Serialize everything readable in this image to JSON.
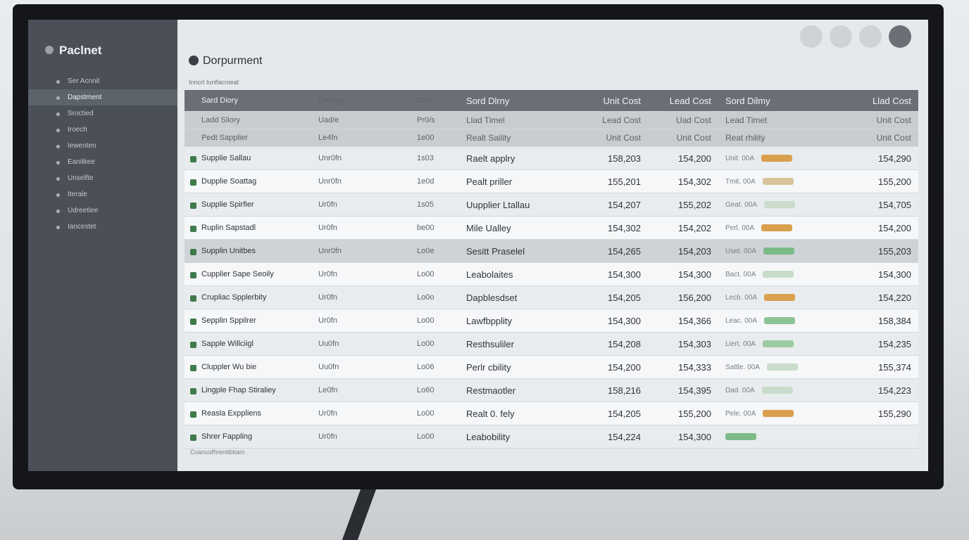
{
  "sidebar": {
    "brand": "Paclnet",
    "items": [
      "Ser Acnnit",
      "Dapstment",
      "Sroctied",
      "Iroech",
      "Iewenten",
      "Eanitkee",
      "Unselfte",
      "Iterale",
      "Udreetlee",
      "Iancestet"
    ],
    "active": 1
  },
  "header": {
    "title": "Dorpurment",
    "subtitle": "Inncrt Iunflacnieat"
  },
  "table": {
    "columns": [
      "Sard Diory",
      "Dalmay",
      "Dlatt",
      "Sord Dlrny",
      "Unit Cost",
      "Lead Cost",
      "Sord Dilmy",
      "Llad Cost"
    ],
    "subheaders": [
      {
        "name": "Ladd Sliory",
        "code": "Uad/e",
        "batch": "Pr0/s",
        "desc": "Llad Timel",
        "unit_cost": "Lead Cost",
        "lead_cost": "Uad Cost",
        "status": "Lead Timet",
        "total": "Unit Cost"
      },
      {
        "name": "Pedt Sapplier",
        "code": "Le4fn",
        "batch": "1e00",
        "desc": "Realt Saility",
        "unit_cost": "Unit Cost",
        "lead_cost": "Unit Cost",
        "status": "Reat rhility",
        "total": "Unit Cost"
      }
    ],
    "rows": [
      {
        "name": "Supplie Sallau",
        "code": "Unr0fn",
        "batch": "1s03",
        "desc": "Raelt applry",
        "unit_cost": "158,203",
        "lead_cost": "154,200",
        "status": "Unit. 00A",
        "status_color": "#d9a04e",
        "total": "154,290"
      },
      {
        "name": "Dupplie Soattag",
        "code": "Unr0fn",
        "batch": "1e0d",
        "desc": "Pealt priller",
        "unit_cost": "155,201",
        "lead_cost": "154,302",
        "status": "Tmit. 00A",
        "status_color": "#d8c49a",
        "total": "155,200"
      },
      {
        "name": "Supplie Spirfier",
        "code": "Ur0fn",
        "batch": "1s05",
        "desc": "Uupplier Ltallau",
        "unit_cost": "154,207",
        "lead_cost": "155,202",
        "status": "Geat. 00A",
        "status_color": "#c9dccb",
        "total": "154,705"
      },
      {
        "name": "Ruplin Sapstadl",
        "code": "Ur0fn",
        "batch": "be00",
        "desc": "Mile Ualley",
        "unit_cost": "154,302",
        "lead_cost": "154,202",
        "status": "Perl. 00A",
        "status_color": "#d9a04e",
        "total": "154,200"
      },
      {
        "name": "Supplin Unitbes",
        "code": "Unr0fn",
        "batch": "Lo0e",
        "desc": "Sesitt Praselel",
        "unit_cost": "154,265",
        "lead_cost": "154,203",
        "status": "Uset. 00A",
        "status_color": "#7cba88",
        "total": "155,203"
      },
      {
        "name": "Cupplier Sape Seoily",
        "code": "Ur0fn",
        "batch": "Lo00",
        "desc": "Leabolaites",
        "unit_cost": "154,300",
        "lead_cost": "154,300",
        "status": "Bact. 00A",
        "status_color": "#c9dccb",
        "total": "154,300"
      },
      {
        "name": "Crupliac Spplerbity",
        "code": "Ur0fn",
        "batch": "Lo0o",
        "desc": "Dapblesdset",
        "unit_cost": "154,205",
        "lead_cost": "156,200",
        "status": "Lecb. 00A",
        "status_color": "#d9a04e",
        "total": "154,220"
      },
      {
        "name": "Sepplin Sppilrer",
        "code": "Ur0fn",
        "batch": "Lo00",
        "desc": "Lawfbpplity",
        "unit_cost": "154,300",
        "lead_cost": "154,366",
        "status": "Leac. 00A",
        "status_color": "#8cc394",
        "total": "158,384"
      },
      {
        "name": "Sapple Willciigl",
        "code": "Uu0fn",
        "batch": "Lo00",
        "desc": "Resthsuliler",
        "unit_cost": "154,208",
        "lead_cost": "154,303",
        "status": "Liert. 00A",
        "status_color": "#9ccaa3",
        "total": "154,235"
      },
      {
        "name": "Cluppler Wu bie",
        "code": "Uu0fn",
        "batch": "Lo06",
        "desc": "Perlr cbility",
        "unit_cost": "154,200",
        "lead_cost": "154,333",
        "status": "Sattle. 00A",
        "status_color": "#c9dccb",
        "total": "155,374"
      },
      {
        "name": "Lingple Fhap Stiraliey",
        "code": "Le0fn",
        "batch": "Lo60",
        "desc": "Restmaotler",
        "unit_cost": "158,216",
        "lead_cost": "154,395",
        "status": "Dad. 00A",
        "status_color": "#c9dccb",
        "total": "154,223"
      },
      {
        "name": "Reasla Exppliens",
        "code": "Ur0fn",
        "batch": "Lo00",
        "desc": "Realt 0. fely",
        "unit_cost": "154,205",
        "lead_cost": "155,200",
        "status": "Pele. 00A",
        "status_color": "#d9a04e",
        "total": "155,290"
      },
      {
        "name": "Shrer Fappling",
        "code": "Ur0fn",
        "batch": "Lo00",
        "desc": "Leabobility",
        "unit_cost": "154,224",
        "lead_cost": "154,300",
        "status_color": "#7cba88"
      }
    ],
    "highlight": 4
  },
  "footer": "Cvanusfhrentibtiam"
}
